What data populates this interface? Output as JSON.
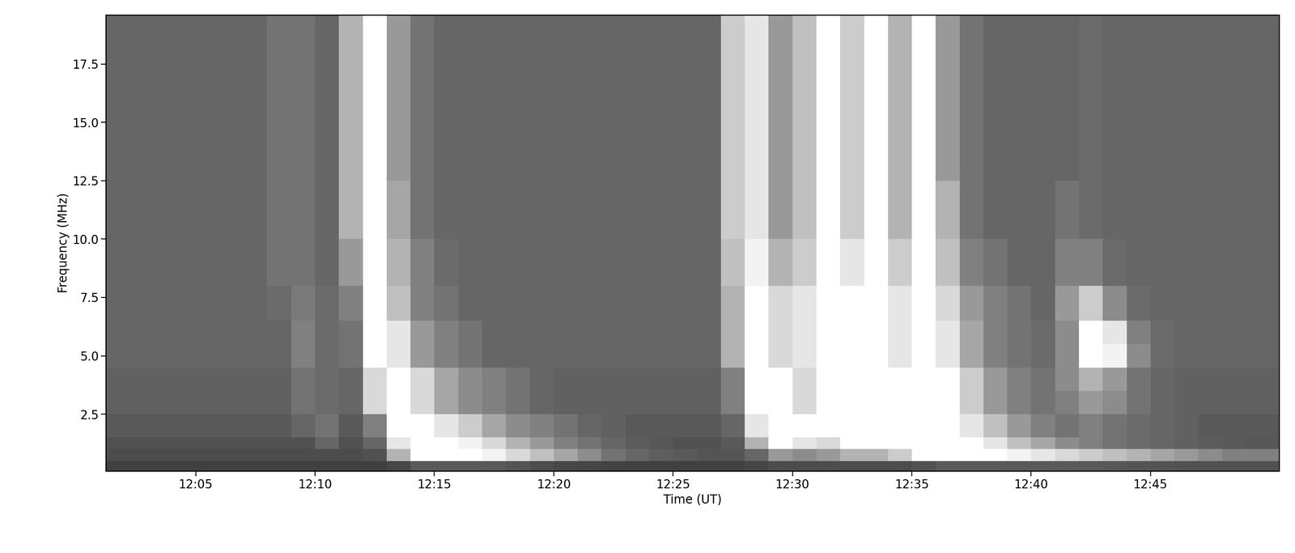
{
  "chart_data": {
    "type": "heatmap",
    "xlabel": "Time (UT)",
    "ylabel": "Frequency (MHz)",
    "xlim": [
      1.25,
      50.4
    ],
    "ylim": [
      0.06,
      19.6
    ],
    "xticks": [
      {
        "value": 5,
        "label": "12:05"
      },
      {
        "value": 10,
        "label": "12:10"
      },
      {
        "value": 15,
        "label": "12:15"
      },
      {
        "value": 20,
        "label": "12:20"
      },
      {
        "value": 25,
        "label": "12:25"
      },
      {
        "value": 30,
        "label": "12:30"
      },
      {
        "value": 35,
        "label": "12:35"
      },
      {
        "value": 40,
        "label": "12:40"
      },
      {
        "value": 45,
        "label": "12:45"
      }
    ],
    "yticks": [
      2.5,
      5.0,
      7.5,
      10.0,
      12.5,
      15.0,
      17.5
    ],
    "x_edges": [
      1.25,
      2,
      3,
      4,
      5,
      6,
      7,
      8,
      9,
      10,
      11,
      12,
      13,
      14,
      15,
      16,
      17,
      18,
      19,
      20,
      21,
      22,
      23,
      24,
      25,
      26,
      27,
      28,
      29,
      30,
      31,
      32,
      33,
      34,
      35,
      36,
      37,
      38,
      39,
      40,
      41,
      42,
      43,
      44,
      45,
      46,
      47,
      48,
      49,
      50,
      50.4
    ],
    "y_edges": [
      0.06,
      0.5,
      1,
      1.5,
      2,
      2.5,
      3.5,
      4.5,
      5.5,
      6.5,
      8,
      10,
      12.5,
      15,
      17.5,
      19.6
    ],
    "color_range": [
      0,
      1
    ],
    "cells": [
      [
        0.25,
        0.25,
        0.25,
        0.25,
        0.25,
        0.25,
        0.25,
        0.25,
        0.25,
        0.25,
        0.25,
        0.25,
        0.28,
        0.35,
        0.35,
        0.35,
        0.35,
        0.33,
        0.3,
        0.28,
        0.27,
        0.26,
        0.25,
        0.25,
        0.25,
        0.25,
        0.25,
        0.27,
        0.3,
        0.3,
        0.3,
        0.3,
        0.3,
        0.3,
        0.32,
        0.35,
        0.35,
        0.35,
        0.35,
        0.35,
        0.35,
        0.35,
        0.34,
        0.33,
        0.33,
        0.32,
        0.32,
        0.32,
        0.32,
        0.32
      ],
      [
        0.3,
        0.3,
        0.3,
        0.3,
        0.3,
        0.3,
        0.3,
        0.3,
        0.3,
        0.3,
        0.3,
        0.32,
        0.7,
        1.0,
        1.0,
        1.0,
        0.95,
        0.85,
        0.75,
        0.65,
        0.55,
        0.45,
        0.4,
        0.37,
        0.35,
        0.33,
        0.33,
        0.4,
        0.6,
        0.55,
        0.6,
        0.7,
        0.7,
        0.8,
        1.0,
        1.0,
        1.0,
        1.0,
        0.95,
        0.9,
        0.85,
        0.8,
        0.75,
        0.7,
        0.65,
        0.6,
        0.55,
        0.5,
        0.5,
        0.5
      ],
      [
        0.32,
        0.32,
        0.32,
        0.32,
        0.32,
        0.32,
        0.32,
        0.32,
        0.32,
        0.4,
        0.32,
        0.4,
        0.9,
        1.0,
        1.0,
        0.95,
        0.85,
        0.7,
        0.6,
        0.5,
        0.45,
        0.4,
        0.36,
        0.34,
        0.32,
        0.32,
        0.35,
        0.7,
        1.0,
        0.9,
        0.85,
        1.0,
        1.0,
        1.0,
        1.0,
        1.0,
        1.0,
        0.9,
        0.75,
        0.65,
        0.55,
        0.5,
        0.45,
        0.42,
        0.4,
        0.38,
        0.36,
        0.35,
        0.34,
        0.34
      ],
      [
        0.35,
        0.35,
        0.35,
        0.35,
        0.35,
        0.35,
        0.35,
        0.35,
        0.4,
        0.45,
        0.35,
        0.5,
        1.0,
        1.0,
        0.9,
        0.8,
        0.65,
        0.55,
        0.5,
        0.45,
        0.4,
        0.38,
        0.35,
        0.35,
        0.35,
        0.35,
        0.4,
        0.9,
        1.0,
        1.0,
        1.0,
        1.0,
        1.0,
        1.0,
        1.0,
        1.0,
        0.9,
        0.75,
        0.6,
        0.5,
        0.45,
        0.5,
        0.45,
        0.42,
        0.4,
        0.38,
        0.35,
        0.35,
        0.35,
        0.35
      ],
      [
        0.35,
        0.35,
        0.35,
        0.35,
        0.35,
        0.35,
        0.35,
        0.35,
        0.4,
        0.45,
        0.35,
        0.5,
        1.0,
        1.0,
        0.9,
        0.8,
        0.65,
        0.55,
        0.5,
        0.45,
        0.4,
        0.38,
        0.35,
        0.35,
        0.35,
        0.35,
        0.4,
        0.9,
        1.0,
        1.0,
        1.0,
        1.0,
        1.0,
        1.0,
        1.0,
        1.0,
        0.9,
        0.75,
        0.6,
        0.5,
        0.45,
        0.5,
        0.45,
        0.42,
        0.4,
        0.38,
        0.35,
        0.35,
        0.35,
        0.35
      ],
      [
        0.38,
        0.38,
        0.38,
        0.38,
        0.38,
        0.38,
        0.38,
        0.38,
        0.45,
        0.42,
        0.4,
        0.85,
        1.0,
        0.85,
        0.65,
        0.55,
        0.5,
        0.45,
        0.4,
        0.38,
        0.38,
        0.38,
        0.38,
        0.38,
        0.38,
        0.38,
        0.5,
        1.0,
        1.0,
        0.85,
        1.0,
        1.0,
        1.0,
        1.0,
        1.0,
        1.0,
        0.8,
        0.6,
        0.5,
        0.45,
        0.5,
        0.6,
        0.55,
        0.45,
        0.4,
        0.38,
        0.38,
        0.38,
        0.38,
        0.38
      ],
      [
        0.38,
        0.38,
        0.38,
        0.38,
        0.38,
        0.38,
        0.38,
        0.38,
        0.45,
        0.42,
        0.4,
        0.85,
        1.0,
        0.85,
        0.65,
        0.55,
        0.5,
        0.45,
        0.4,
        0.38,
        0.38,
        0.38,
        0.38,
        0.38,
        0.38,
        0.38,
        0.5,
        1.0,
        1.0,
        0.85,
        1.0,
        1.0,
        1.0,
        1.0,
        1.0,
        1.0,
        0.8,
        0.6,
        0.5,
        0.45,
        0.55,
        0.7,
        0.6,
        0.45,
        0.4,
        0.38,
        0.38,
        0.38,
        0.38,
        0.38
      ],
      [
        0.4,
        0.4,
        0.4,
        0.4,
        0.4,
        0.4,
        0.4,
        0.4,
        0.5,
        0.42,
        0.45,
        1.0,
        0.9,
        0.6,
        0.5,
        0.45,
        0.4,
        0.4,
        0.4,
        0.4,
        0.4,
        0.4,
        0.4,
        0.4,
        0.4,
        0.4,
        0.7,
        1.0,
        0.85,
        0.9,
        1.0,
        1.0,
        1.0,
        0.9,
        1.0,
        0.9,
        0.65,
        0.5,
        0.45,
        0.42,
        0.55,
        1.0,
        0.95,
        0.55,
        0.42,
        0.4,
        0.4,
        0.4,
        0.4,
        0.4
      ],
      [
        0.4,
        0.4,
        0.4,
        0.4,
        0.4,
        0.4,
        0.4,
        0.4,
        0.5,
        0.42,
        0.45,
        1.0,
        0.9,
        0.6,
        0.5,
        0.45,
        0.4,
        0.4,
        0.4,
        0.4,
        0.4,
        0.4,
        0.4,
        0.4,
        0.4,
        0.4,
        0.7,
        1.0,
        0.85,
        0.9,
        1.0,
        1.0,
        1.0,
        0.9,
        1.0,
        0.9,
        0.65,
        0.5,
        0.45,
        0.42,
        0.55,
        1.0,
        0.9,
        0.5,
        0.42,
        0.4,
        0.4,
        0.4,
        0.4,
        0.4
      ],
      [
        0.4,
        0.4,
        0.4,
        0.4,
        0.4,
        0.4,
        0.4,
        0.42,
        0.48,
        0.42,
        0.5,
        1.0,
        0.75,
        0.5,
        0.45,
        0.4,
        0.4,
        0.4,
        0.4,
        0.4,
        0.4,
        0.4,
        0.4,
        0.4,
        0.4,
        0.4,
        0.7,
        1.0,
        0.85,
        0.9,
        1.0,
        1.0,
        1.0,
        0.9,
        1.0,
        0.85,
        0.6,
        0.5,
        0.45,
        0.4,
        0.6,
        0.8,
        0.55,
        0.42,
        0.4,
        0.4,
        0.4,
        0.4,
        0.4,
        0.4
      ],
      [
        0.4,
        0.4,
        0.4,
        0.4,
        0.4,
        0.4,
        0.4,
        0.45,
        0.45,
        0.4,
        0.6,
        1.0,
        0.7,
        0.5,
        0.42,
        0.4,
        0.4,
        0.4,
        0.4,
        0.4,
        0.4,
        0.4,
        0.4,
        0.4,
        0.4,
        0.4,
        0.75,
        0.95,
        0.7,
        0.8,
        1.0,
        0.9,
        1.0,
        0.8,
        1.0,
        0.75,
        0.5,
        0.45,
        0.4,
        0.4,
        0.5,
        0.5,
        0.42,
        0.4,
        0.4,
        0.4,
        0.4,
        0.4,
        0.4,
        0.4
      ],
      [
        0.4,
        0.4,
        0.4,
        0.4,
        0.4,
        0.4,
        0.4,
        0.45,
        0.45,
        0.4,
        0.7,
        1.0,
        0.65,
        0.45,
        0.4,
        0.4,
        0.4,
        0.4,
        0.4,
        0.4,
        0.4,
        0.4,
        0.4,
        0.4,
        0.4,
        0.4,
        0.8,
        0.9,
        0.6,
        0.75,
        1.0,
        0.8,
        1.0,
        0.7,
        1.0,
        0.7,
        0.45,
        0.4,
        0.4,
        0.4,
        0.45,
        0.42,
        0.4,
        0.4,
        0.4,
        0.4,
        0.4,
        0.4,
        0.4,
        0.4
      ],
      [
        0.4,
        0.4,
        0.4,
        0.4,
        0.4,
        0.4,
        0.4,
        0.45,
        0.45,
        0.4,
        0.7,
        1.0,
        0.6,
        0.45,
        0.4,
        0.4,
        0.4,
        0.4,
        0.4,
        0.4,
        0.4,
        0.4,
        0.4,
        0.4,
        0.4,
        0.4,
        0.8,
        0.9,
        0.6,
        0.75,
        1.0,
        0.8,
        1.0,
        0.7,
        1.0,
        0.6,
        0.45,
        0.4,
        0.4,
        0.4,
        0.4,
        0.42,
        0.4,
        0.4,
        0.4,
        0.4,
        0.4,
        0.4,
        0.4,
        0.4
      ],
      [
        0.4,
        0.4,
        0.4,
        0.4,
        0.4,
        0.4,
        0.4,
        0.45,
        0.45,
        0.4,
        0.7,
        1.0,
        0.6,
        0.45,
        0.4,
        0.4,
        0.4,
        0.4,
        0.4,
        0.4,
        0.4,
        0.4,
        0.4,
        0.4,
        0.4,
        0.4,
        0.8,
        0.9,
        0.6,
        0.75,
        1.0,
        0.8,
        1.0,
        0.7,
        1.0,
        0.6,
        0.45,
        0.4,
        0.4,
        0.4,
        0.4,
        0.42,
        0.4,
        0.4,
        0.4,
        0.4,
        0.4,
        0.4,
        0.4,
        0.4
      ],
      [
        0.4,
        0.4,
        0.4,
        0.4,
        0.4,
        0.4,
        0.4,
        0.45,
        0.45,
        0.4,
        0.7,
        1.0,
        0.6,
        0.45,
        0.4,
        0.4,
        0.4,
        0.4,
        0.4,
        0.4,
        0.4,
        0.4,
        0.4,
        0.4,
        0.4,
        0.4,
        0.8,
        0.9,
        0.6,
        0.75,
        1.0,
        0.8,
        1.0,
        0.7,
        1.0,
        0.6,
        0.45,
        0.4,
        0.4,
        0.4,
        0.4,
        0.42,
        0.4,
        0.4,
        0.4,
        0.4,
        0.4,
        0.4,
        0.4,
        0.4
      ]
    ]
  }
}
